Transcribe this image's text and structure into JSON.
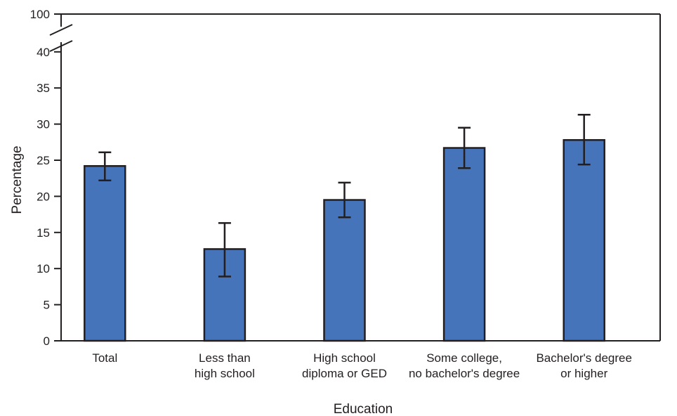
{
  "chart_data": {
    "type": "bar",
    "xlabel": "Education",
    "ylabel": "Percentage",
    "categories": [
      [
        "Total"
      ],
      [
        "Less than",
        "high school"
      ],
      [
        "High school",
        "diploma or GED"
      ],
      [
        "Some college,",
        "no bachelor's degree"
      ],
      [
        "Bachelor's degree",
        "or higher"
      ]
    ],
    "values": [
      24.2,
      12.7,
      19.5,
      26.7,
      27.8
    ],
    "ci_lower": [
      22.2,
      8.9,
      17.1,
      23.9,
      24.4
    ],
    "ci_upper": [
      26.1,
      16.3,
      21.9,
      29.5,
      31.3
    ],
    "yticks": [
      "0",
      "5",
      "10",
      "15",
      "20",
      "25",
      "30",
      "35",
      "40",
      "100"
    ],
    "ylim": [
      0,
      100
    ],
    "axis_break": [
      40,
      100
    ],
    "grid": false,
    "bar_color": "#4674ba",
    "stroke_color": "#231f20"
  }
}
